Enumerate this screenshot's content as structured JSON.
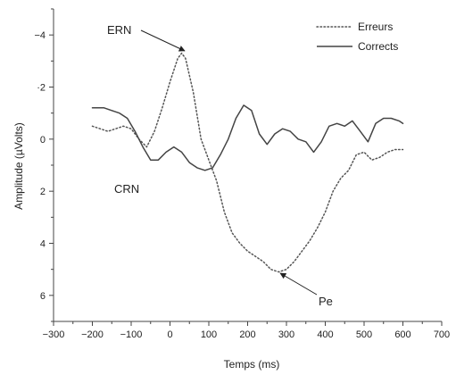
{
  "chart_data": {
    "type": "line",
    "title": "",
    "xlabel": "Temps (ms)",
    "ylabel": "Amplitude (µVolts)",
    "xlim": [
      -300,
      700
    ],
    "ylim": [
      -5,
      7
    ],
    "y_inverted": true,
    "grid": false,
    "legend_position": "top-right",
    "x_ticks": [
      -300,
      -200,
      -100,
      0,
      100,
      200,
      300,
      400,
      500,
      600,
      700
    ],
    "x_tick_labels": [
      "−300",
      "−200",
      "−100",
      "0",
      "100",
      "200",
      "300",
      "400",
      "500",
      "600",
      "700"
    ],
    "y_ticks": [
      -4,
      -2,
      0,
      2,
      4,
      6
    ],
    "y_tick_labels": [
      "−4",
      "·2",
      "0",
      "2",
      "4",
      "6"
    ],
    "series": [
      {
        "name": "Erreurs",
        "style": "dotted",
        "color": "#555555",
        "x": [
          -200,
          -180,
          -160,
          -140,
          -120,
          -100,
          -80,
          -60,
          -40,
          -20,
          0,
          20,
          30,
          40,
          60,
          80,
          100,
          120,
          140,
          160,
          180,
          200,
          220,
          240,
          260,
          280,
          300,
          320,
          340,
          360,
          380,
          400,
          420,
          440,
          460,
          480,
          500,
          520,
          540,
          560,
          580,
          600
        ],
        "y": [
          -0.5,
          -0.4,
          -0.3,
          -0.4,
          -0.5,
          -0.4,
          0.0,
          0.3,
          -0.3,
          -1.2,
          -2.2,
          -3.1,
          -3.3,
          -3.1,
          -1.8,
          0.0,
          0.8,
          1.6,
          2.8,
          3.6,
          4.0,
          4.3,
          4.5,
          4.7,
          5.0,
          5.1,
          5.0,
          4.7,
          4.3,
          3.9,
          3.4,
          2.8,
          2.0,
          1.5,
          1.2,
          0.6,
          0.5,
          0.8,
          0.7,
          0.5,
          0.4,
          0.4
        ]
      },
      {
        "name": "Corrects",
        "style": "solid",
        "color": "#444444",
        "x": [
          -200,
          -170,
          -150,
          -130,
          -110,
          -90,
          -70,
          -50,
          -30,
          -10,
          10,
          30,
          50,
          70,
          90,
          110,
          130,
          150,
          170,
          190,
          210,
          230,
          250,
          270,
          290,
          310,
          330,
          350,
          370,
          390,
          410,
          430,
          450,
          470,
          490,
          510,
          530,
          550,
          570,
          590,
          600
        ],
        "y": [
          -1.2,
          -1.2,
          -1.1,
          -1.0,
          -0.8,
          -0.3,
          0.3,
          0.8,
          0.8,
          0.5,
          0.3,
          0.5,
          0.9,
          1.1,
          1.2,
          1.1,
          0.6,
          0.0,
          -0.8,
          -1.3,
          -1.1,
          -0.2,
          0.2,
          -0.2,
          -0.4,
          -0.3,
          0.0,
          0.1,
          0.5,
          0.1,
          -0.5,
          -0.6,
          -0.5,
          -0.7,
          -0.3,
          0.1,
          -0.6,
          -0.8,
          -0.8,
          -0.7,
          -0.6
        ]
      }
    ],
    "annotations": [
      {
        "text": "ERN",
        "points_to": [
          30,
          -3.3
        ]
      },
      {
        "text": "CRN",
        "points_to": [
          15,
          0.4
        ]
      },
      {
        "text": "Pe",
        "points_to": [
          280,
          5.1
        ]
      }
    ]
  }
}
